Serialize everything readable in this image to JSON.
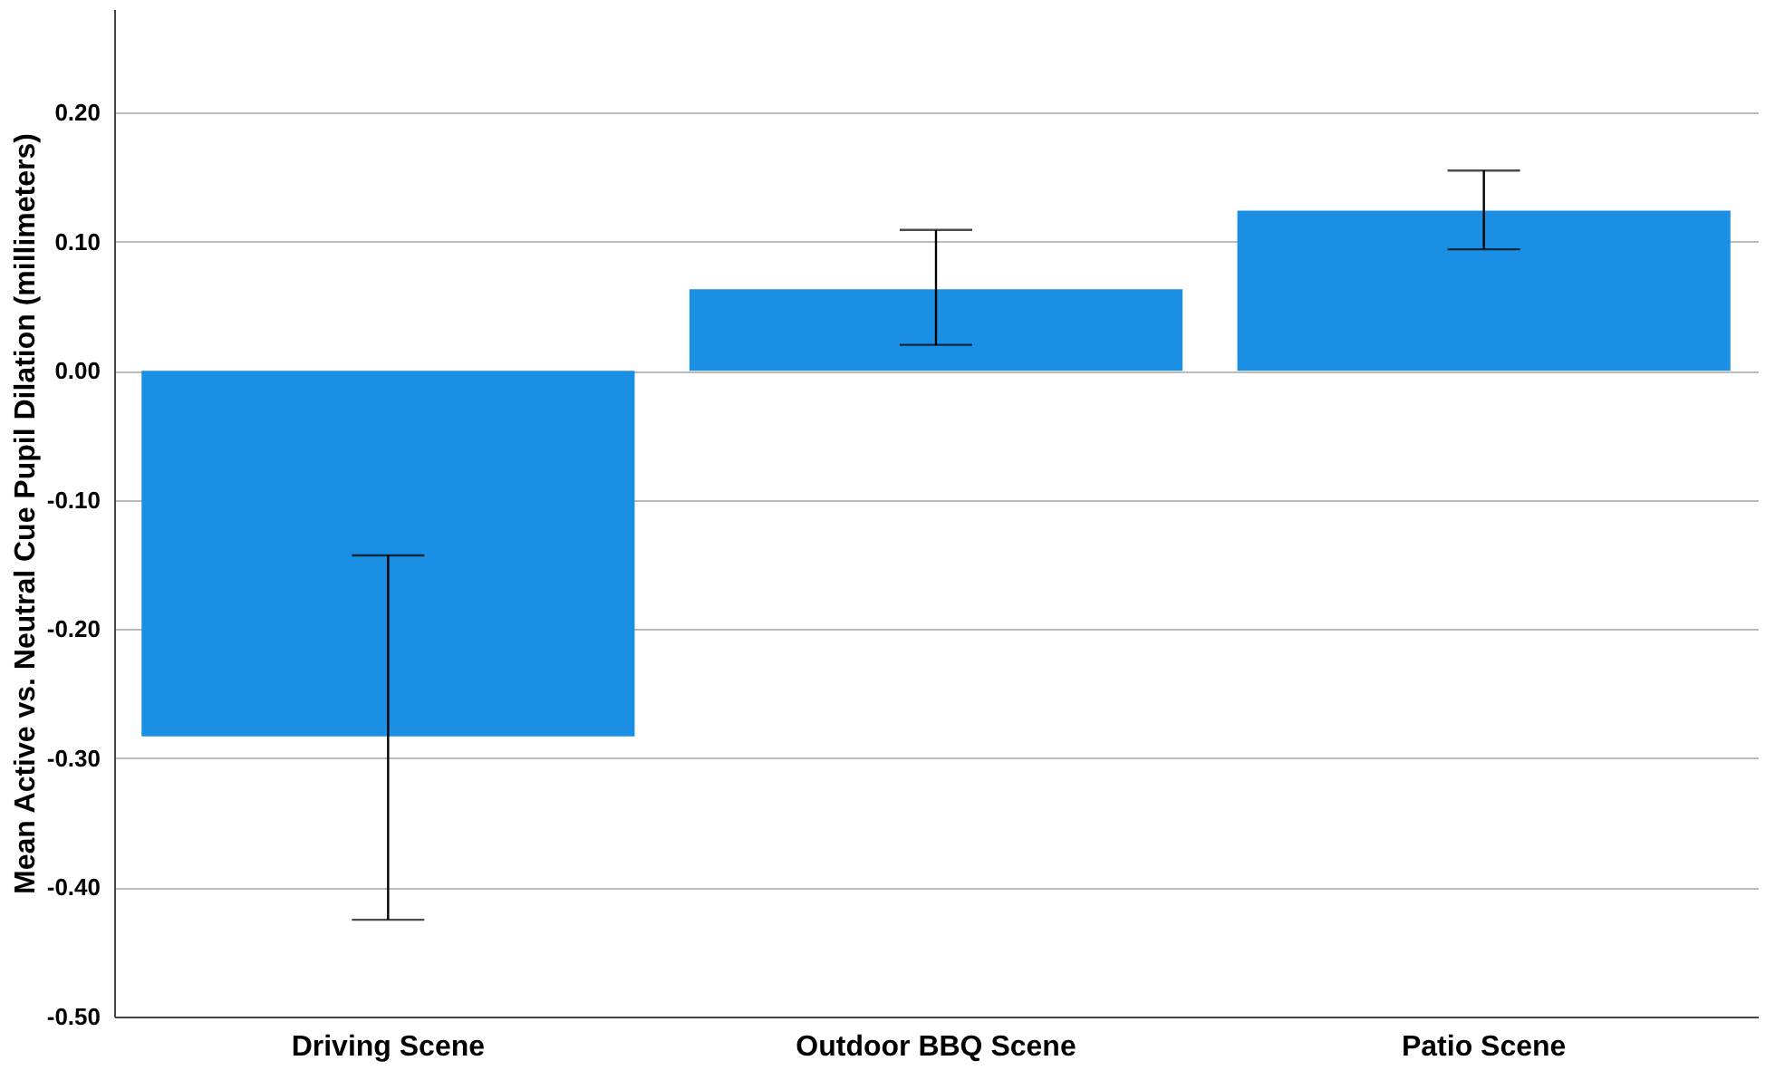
{
  "chart_data": {
    "type": "bar",
    "ylabel": "Mean Active vs. Neutral Cue Pupil Dilation (millimeters)",
    "categories": [
      "Driving Scene",
      "Outdoor BBQ Scene",
      "Patio Scene"
    ],
    "values": [
      -0.283,
      0.063,
      0.124
    ],
    "color": "#1a8fe3",
    "errors": [
      [
        -0.425,
        -0.143
      ],
      [
        0.02,
        0.109
      ],
      [
        0.094,
        0.155
      ]
    ],
    "ylim": [
      -0.5,
      0.28
    ],
    "yticks": [
      {
        "value": -0.5,
        "label": "-0.50"
      },
      {
        "value": -0.4,
        "label": "-0.40"
      },
      {
        "value": -0.3,
        "label": "-0.30"
      },
      {
        "value": -0.2,
        "label": "-0.20"
      },
      {
        "value": -0.1,
        "label": "-0.10"
      },
      {
        "value": 0,
        "label": "0.00"
      },
      {
        "value": 0.1,
        "label": "0.10"
      },
      {
        "value": 0.2,
        "label": "0.20"
      }
    ],
    "grid": "y"
  }
}
